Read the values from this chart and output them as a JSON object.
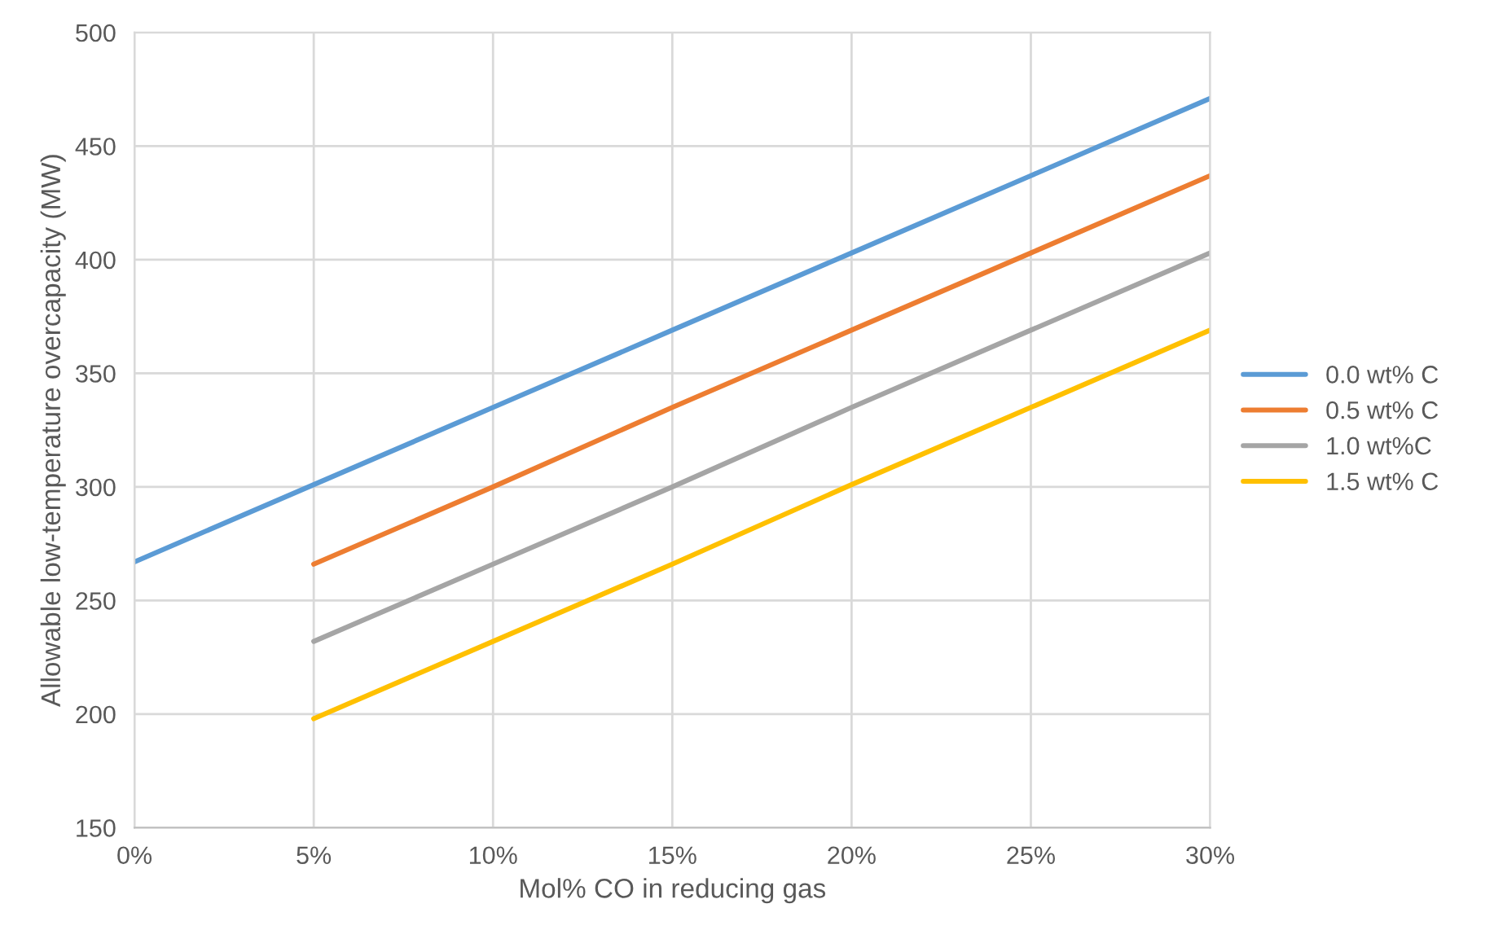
{
  "chart_data": {
    "type": "line",
    "xlabel": "Mol% CO in reducing gas",
    "ylabel": "Allowable low-temperature overcapacity (MW)",
    "xlim": [
      0,
      30
    ],
    "ylim": [
      150,
      500
    ],
    "xticks": [
      {
        "value": 0,
        "label": "0%"
      },
      {
        "value": 5,
        "label": "5%"
      },
      {
        "value": 10,
        "label": "10%"
      },
      {
        "value": 15,
        "label": "15%"
      },
      {
        "value": 20,
        "label": "20%"
      },
      {
        "value": 25,
        "label": "25%"
      },
      {
        "value": 30,
        "label": "30%"
      }
    ],
    "yticks": [
      150,
      200,
      250,
      300,
      350,
      400,
      450,
      500
    ],
    "grid": true,
    "legend": "right",
    "marker": "none",
    "line_style": "solid",
    "series": [
      {
        "name": "0.0 wt% C",
        "color": "#5b9bd5",
        "x": [
          0,
          5,
          10,
          15,
          20,
          25,
          30
        ],
        "values": [
          267,
          301,
          335,
          369,
          403,
          437,
          471
        ]
      },
      {
        "name": "0.5 wt% C",
        "color": "#ed7d31",
        "x": [
          5,
          10,
          15,
          20,
          25,
          30
        ],
        "values": [
          266,
          300,
          335,
          369,
          403,
          437
        ]
      },
      {
        "name": "1.0 wt%C",
        "color": "#a5a5a5",
        "x": [
          5,
          10,
          15,
          20,
          25,
          30
        ],
        "values": [
          232,
          266,
          300,
          335,
          369,
          403
        ]
      },
      {
        "name": "1.5 wt% C",
        "color": "#ffc000",
        "x": [
          5,
          10,
          15,
          20,
          25,
          30
        ],
        "values": [
          198,
          232,
          266,
          301,
          335,
          369
        ]
      }
    ]
  }
}
